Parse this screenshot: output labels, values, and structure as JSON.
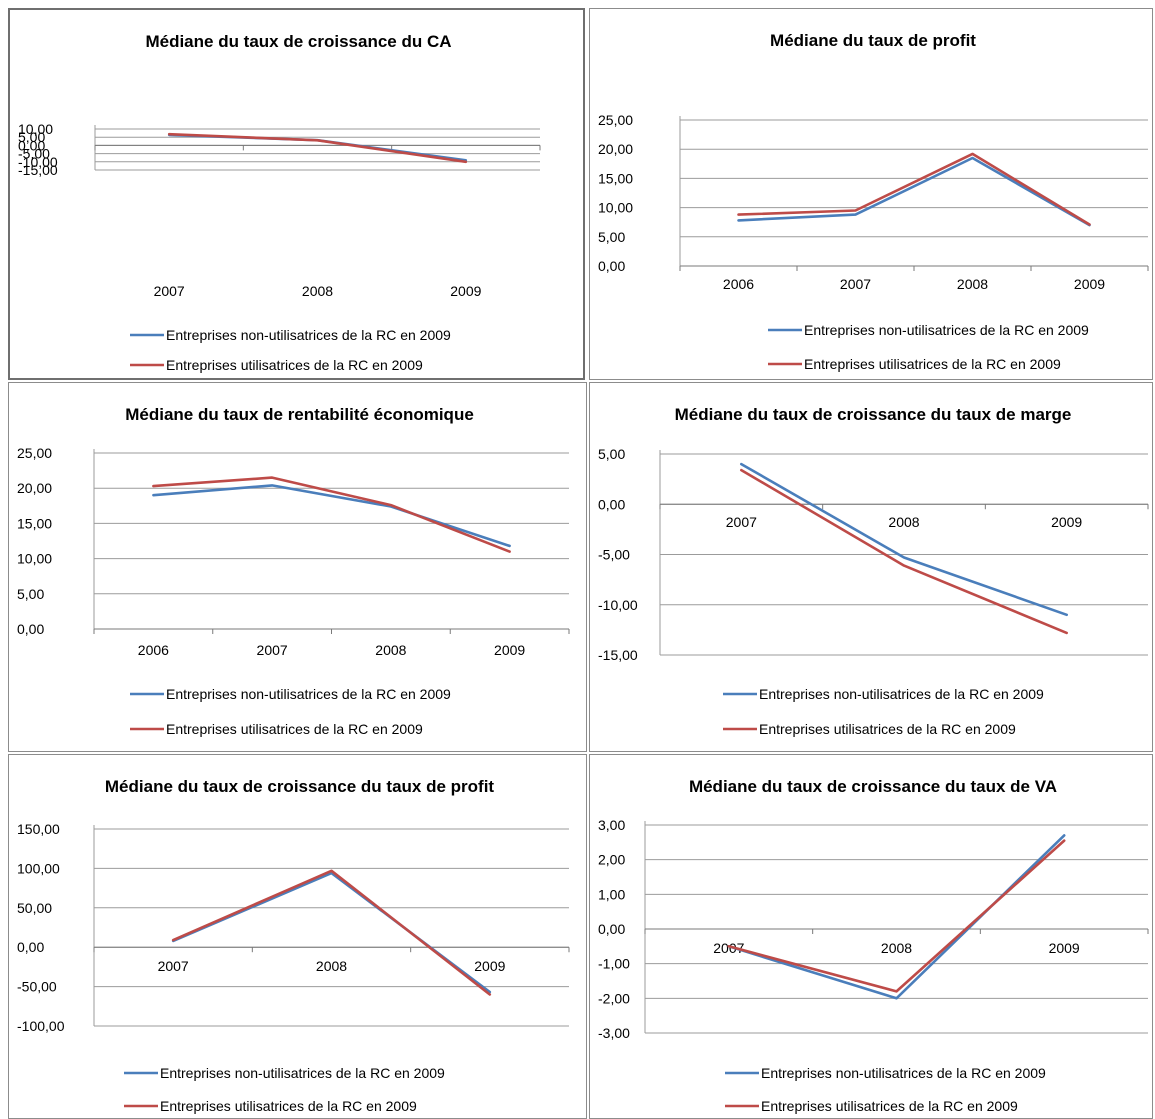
{
  "colors": {
    "series_1": "#4a7ebb",
    "series_2": "#be4b48",
    "grid": "#9b9b9b",
    "text": "#000000"
  },
  "chart_data": [
    {
      "type": "line",
      "title": "Médiane du taux de croissance du CA",
      "categories": [
        "2007",
        "2008",
        "2009"
      ],
      "ylim": [
        -15,
        10
      ],
      "yticks": [
        10,
        5,
        0,
        -5,
        -10,
        -15
      ],
      "ytick_labels": [
        "10,00",
        "5,00",
        "0,00",
        "-5,00",
        "-10,00",
        "-15,00"
      ],
      "grid": true,
      "legend": "bottom",
      "series": [
        {
          "name": "Entreprises non-utilisatrices de la RC en 2009",
          "values": [
            6.4,
            3.2,
            -9.1
          ]
        },
        {
          "name": "Entreprises utilisatrices de la RC en 2009",
          "values": [
            6.8,
            3.1,
            -10.0
          ]
        }
      ]
    },
    {
      "type": "line",
      "title": "Médiane du taux de profit",
      "categories": [
        "2006",
        "2007",
        "2008",
        "2009"
      ],
      "ylim": [
        0,
        25
      ],
      "yticks": [
        25,
        20,
        15,
        10,
        5,
        0
      ],
      "ytick_labels": [
        "25,00",
        "20,00",
        "15,00",
        "10,00",
        "5,00",
        "0,00"
      ],
      "grid": true,
      "legend": "bottom",
      "series": [
        {
          "name": "Entreprises non-utilisatrices de la RC en 2009",
          "values": [
            7.8,
            8.8,
            18.5,
            7.0
          ]
        },
        {
          "name": "Entreprises utilisatrices de la RC en 2009",
          "values": [
            8.8,
            9.5,
            19.2,
            7.1
          ]
        }
      ]
    },
    {
      "type": "line",
      "title": "Médiane du taux de rentabilité économique",
      "categories": [
        "2006",
        "2007",
        "2008",
        "2009"
      ],
      "ylim": [
        0,
        25
      ],
      "yticks": [
        25,
        20,
        15,
        10,
        5,
        0
      ],
      "ytick_labels": [
        "25,00",
        "20,00",
        "15,00",
        "10,00",
        "5,00",
        "0,00"
      ],
      "grid": true,
      "legend": "bottom",
      "series": [
        {
          "name": "Entreprises non-utilisatrices de la RC en 2009",
          "values": [
            19.0,
            20.4,
            17.4,
            11.8
          ]
        },
        {
          "name": "Entreprises utilisatrices de la RC en 2009",
          "values": [
            20.3,
            21.5,
            17.6,
            11.0
          ]
        }
      ]
    },
    {
      "type": "line",
      "title": "Médiane du taux de croissance du taux de marge",
      "categories": [
        "2007",
        "2008",
        "2009"
      ],
      "ylim": [
        -15,
        5
      ],
      "yticks": [
        5,
        0,
        -5,
        -10,
        -15
      ],
      "ytick_labels": [
        "5,00",
        "0,00",
        "-5,00",
        "-10,00",
        "-15,00"
      ],
      "grid": true,
      "legend": "bottom",
      "series": [
        {
          "name": "Entreprises non-utilisatrices de la RC en 2009",
          "values": [
            4.0,
            -5.3,
            -11.0
          ]
        },
        {
          "name": "Entreprises utilisatrices de la RC en 2009",
          "values": [
            3.4,
            -6.1,
            -12.8
          ]
        }
      ]
    },
    {
      "type": "line",
      "title": "Médiane du taux de croissance du taux de profit",
      "categories": [
        "2007",
        "2008",
        "2009"
      ],
      "ylim": [
        -100,
        150
      ],
      "yticks": [
        150,
        100,
        50,
        0,
        -50,
        -100
      ],
      "ytick_labels": [
        "150,00",
        "100,00",
        "50,00",
        "0,00",
        "-50,00",
        "-100,00"
      ],
      "grid": true,
      "legend": "bottom",
      "series": [
        {
          "name": "Entreprises non-utilisatrices de la RC en 2009",
          "values": [
            8.0,
            94.0,
            -57.0
          ]
        },
        {
          "name": "Entreprises utilisatrices de la RC en 2009",
          "values": [
            9.0,
            97.0,
            -60.0
          ]
        }
      ]
    },
    {
      "type": "line",
      "title": "Médiane du taux de croissance du taux de VA",
      "categories": [
        "2007",
        "2008",
        "2009"
      ],
      "ylim": [
        -3,
        3
      ],
      "yticks": [
        3,
        2,
        1,
        0,
        -1,
        -2,
        -3
      ],
      "ytick_labels": [
        "3,00",
        "2,00",
        "1,00",
        "0,00",
        "-1,00",
        "-2,00",
        "-3,00"
      ],
      "grid": true,
      "legend": "bottom",
      "series": [
        {
          "name": "Entreprises non-utilisatrices de la RC en 2009",
          "values": [
            -0.5,
            -2.0,
            2.7
          ]
        },
        {
          "name": "Entreprises utilisatrices de la RC en 2009",
          "values": [
            -0.5,
            -1.8,
            2.55
          ]
        }
      ]
    }
  ]
}
